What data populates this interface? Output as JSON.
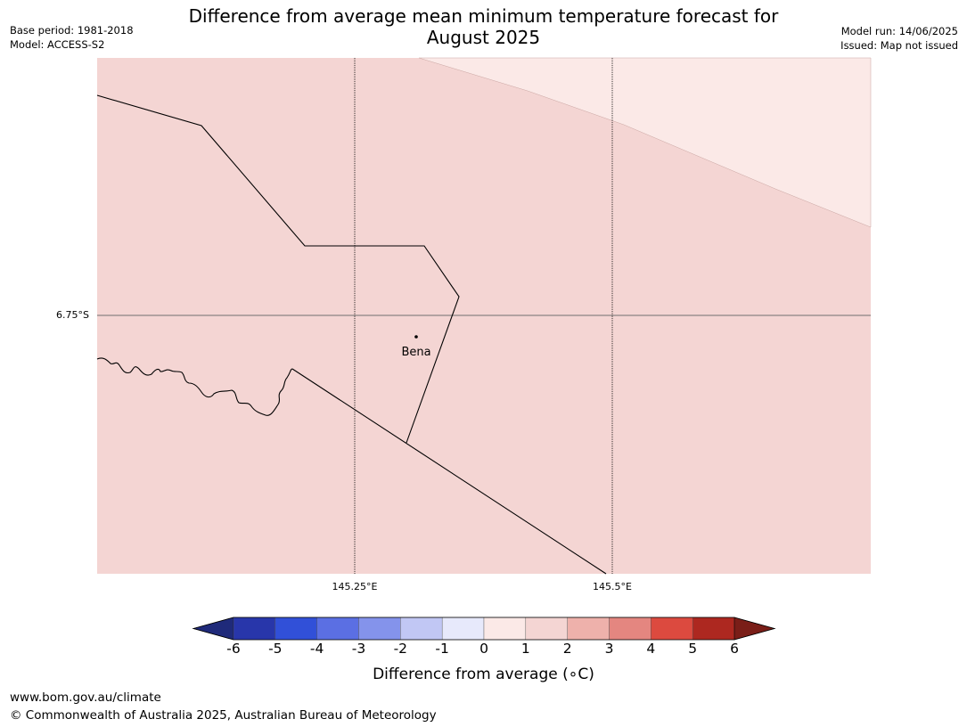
{
  "title": {
    "line1": "Difference from average mean minimum temperature forecast for",
    "line2": "August 2025"
  },
  "meta": {
    "base_period": "Base period: 1981-2018",
    "model": "Model: ACCESS-S2",
    "model_run": "Model run: 14/06/2025",
    "issued": "Issued: Map not issued"
  },
  "map": {
    "lat_labels": [
      "6.75°S"
    ],
    "lon_labels": [
      "145.25°E",
      "145.5°E"
    ],
    "places": [
      {
        "name": "Bena"
      }
    ],
    "colors": {
      "band_0_1": "#fbe9e7",
      "band_1_2": "#f4d5d3",
      "border": "#000000",
      "gridline": "#666666"
    }
  },
  "colorbar": {
    "ticks": [
      "-6",
      "-5",
      "-4",
      "-3",
      "-2",
      "-1",
      "0",
      "1",
      "2",
      "3",
      "4",
      "5",
      "6"
    ],
    "colors": {
      "below_-6": "#1f2a7a",
      "-6_-5": "#2836aa",
      "-5_-4": "#3150d8",
      "-4_-3": "#5b6fe3",
      "-3_-2": "#8493eb",
      "-2_-1": "#c1c7f4",
      "-1_0": "#e7e9fb",
      "0_1": "#fbe9e7",
      "1_2": "#f4d5d3",
      "2_3": "#eeb1ab",
      "3_4": "#e48680",
      "4_5": "#dc4a3f",
      "5_6": "#ad2820",
      "above_6": "#7a1e18"
    },
    "label": "Difference from average (∘C)"
  },
  "footer": {
    "url": "www.bom.gov.au/climate",
    "copyright": "© Commonwealth of Australia 2025, Australian Bureau of Meteorology"
  }
}
